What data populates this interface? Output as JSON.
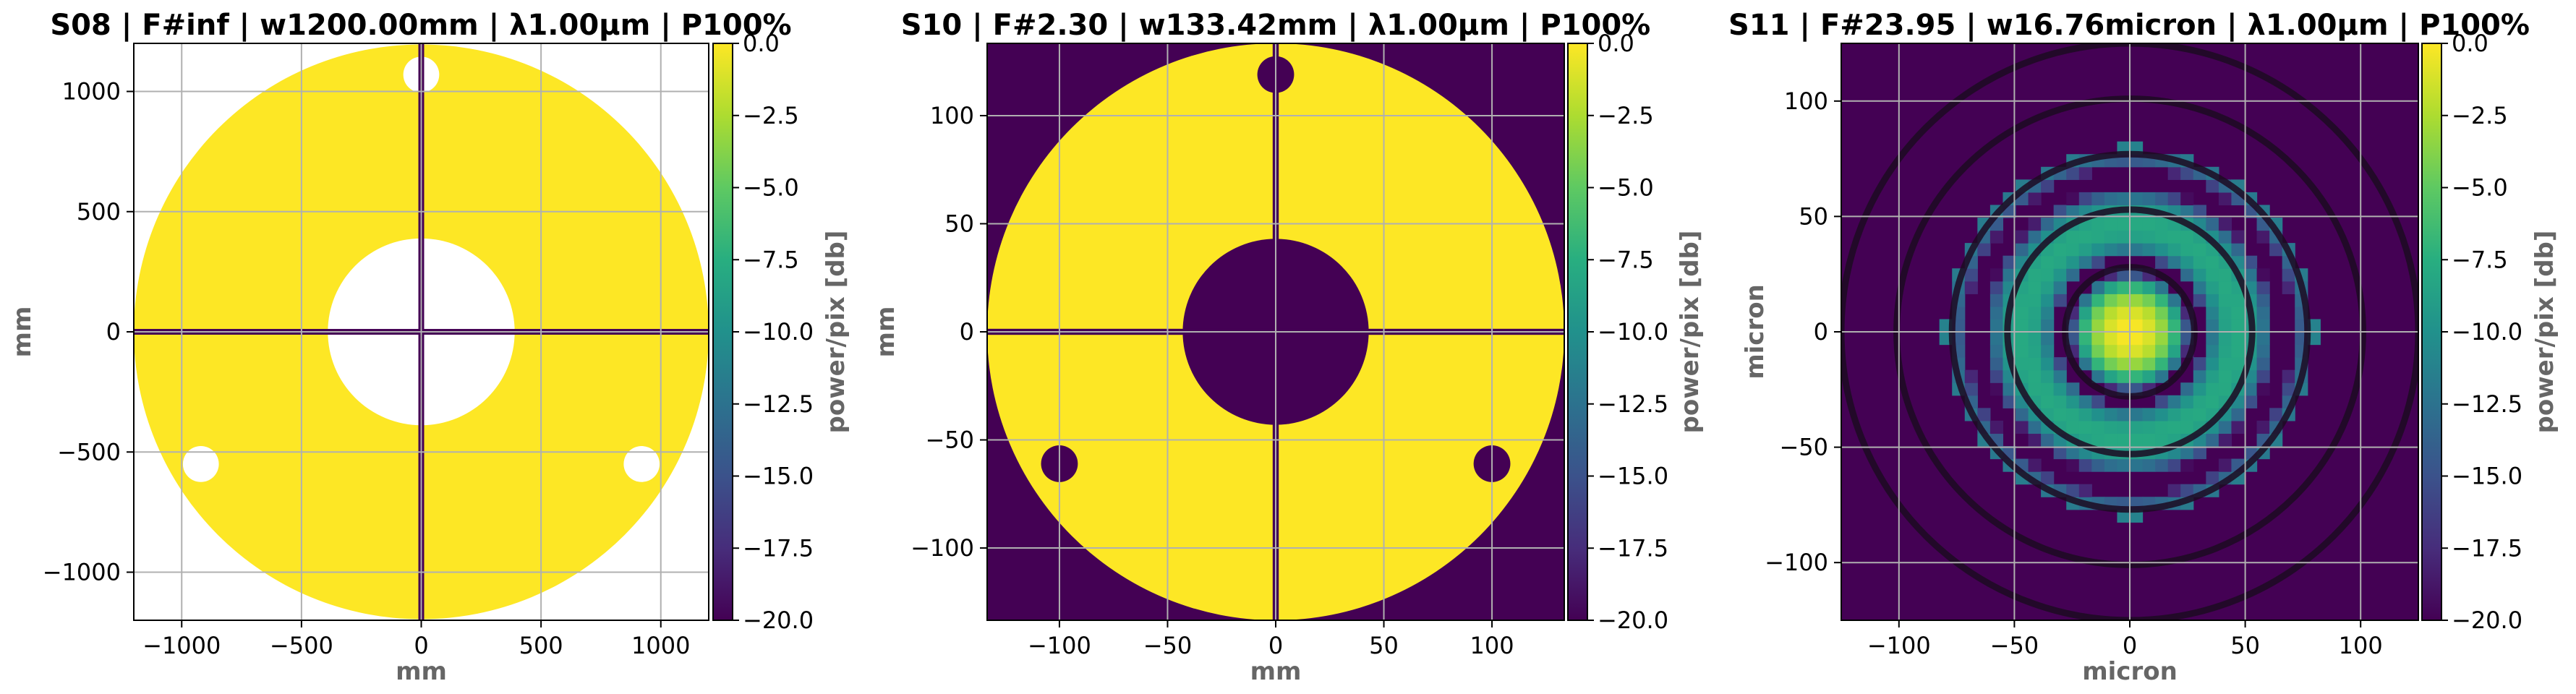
{
  "chart_data": [
    {
      "type": "heatmap",
      "title": "S08 | F#inf | w1200.00mm | λ1.00μm | P100%",
      "xlabel": "mm",
      "ylabel": "mm",
      "xlim": [
        -1200,
        1200
      ],
      "ylim": [
        -1200,
        1200
      ],
      "xticks": [
        -1000,
        -500,
        0,
        500,
        1000
      ],
      "yticks": [
        -1000,
        -500,
        0,
        500,
        1000
      ],
      "xtick_labels": [
        "−1000",
        "−500",
        "0",
        "500",
        "1000"
      ],
      "ytick_labels": [
        "−1000",
        "−500",
        "0",
        "500",
        "1000"
      ],
      "grid": true,
      "background": "masked (white)",
      "pupil": {
        "outer_radius": 1200,
        "inner_obscuration_radius": 390,
        "spider_half_width": 12,
        "holes": [
          {
            "x": 0,
            "y": 1070,
            "r": 75
          },
          {
            "x": -920,
            "y": -550,
            "r": 75
          },
          {
            "x": 920,
            "y": -550,
            "r": 75
          }
        ]
      },
      "colorbar": {
        "label": "power/pix [db]",
        "range": [
          -20.0,
          0.0
        ],
        "ticks": [
          "0.0",
          "−2.5",
          "−5.0",
          "−7.5",
          "−10.0",
          "−12.5",
          "−15.0",
          "−17.5",
          "−20.0"
        ],
        "colormap": "viridis"
      }
    },
    {
      "type": "heatmap",
      "title": "S10 | F#2.30 | w133.42mm | λ1.00μm | P100%",
      "xlabel": "mm",
      "ylabel": "mm",
      "xlim": [
        -133.42,
        133.42
      ],
      "ylim": [
        -133.42,
        133.42
      ],
      "xticks": [
        -100,
        -50,
        0,
        50,
        100
      ],
      "yticks": [
        -100,
        -50,
        0,
        50,
        100
      ],
      "xtick_labels": [
        "−100",
        "−50",
        "0",
        "50",
        "100"
      ],
      "ytick_labels": [
        "−100",
        "−50",
        "0",
        "50",
        "100"
      ],
      "grid": true,
      "background": "-20 dB",
      "pupil": {
        "outer_radius": 133.42,
        "inner_obscuration_radius": 43,
        "spider_half_width": 1.4,
        "holes": [
          {
            "x": 0,
            "y": 119,
            "r": 8.5
          },
          {
            "x": -100,
            "y": -61,
            "r": 8.5
          },
          {
            "x": 100,
            "y": -61,
            "r": 8.5
          }
        ]
      },
      "colorbar": {
        "label": "power/pix [db]",
        "range": [
          -20.0,
          0.0
        ],
        "ticks": [
          "0.0",
          "−2.5",
          "−5.0",
          "−7.5",
          "−10.0",
          "−12.5",
          "−15.0",
          "−17.5",
          "−20.0"
        ],
        "colormap": "viridis"
      }
    },
    {
      "type": "heatmap",
      "title": "S11 | F#23.95 | w16.76micron | λ1.00μm | P100%",
      "xlabel": "micron",
      "ylabel": "micron",
      "xlim": [
        -125,
        125
      ],
      "ylim": [
        -125,
        125
      ],
      "xticks": [
        -100,
        -50,
        0,
        50,
        100
      ],
      "yticks": [
        -100,
        -50,
        0,
        50,
        100
      ],
      "xtick_labels": [
        "−100",
        "−50",
        "0",
        "50",
        "100"
      ],
      "ytick_labels": [
        "−100",
        "−50",
        "0",
        "50",
        "100"
      ],
      "grid": true,
      "background": "-20 dB",
      "psf": {
        "pixel_size": 5.5,
        "airy_first_dark_ring": 29,
        "ring_radius_step": 24,
        "ring_radii": [
          28,
          53,
          77,
          101,
          125
        ]
      },
      "colorbar": {
        "label": "power/pix [db]",
        "range": [
          -20.0,
          0.0
        ],
        "ticks": [
          "0.0",
          "−2.5",
          "−5.0",
          "−7.5",
          "−10.0",
          "−12.5",
          "−15.0",
          "−17.5",
          "−20.0"
        ],
        "colormap": "viridis"
      }
    }
  ]
}
